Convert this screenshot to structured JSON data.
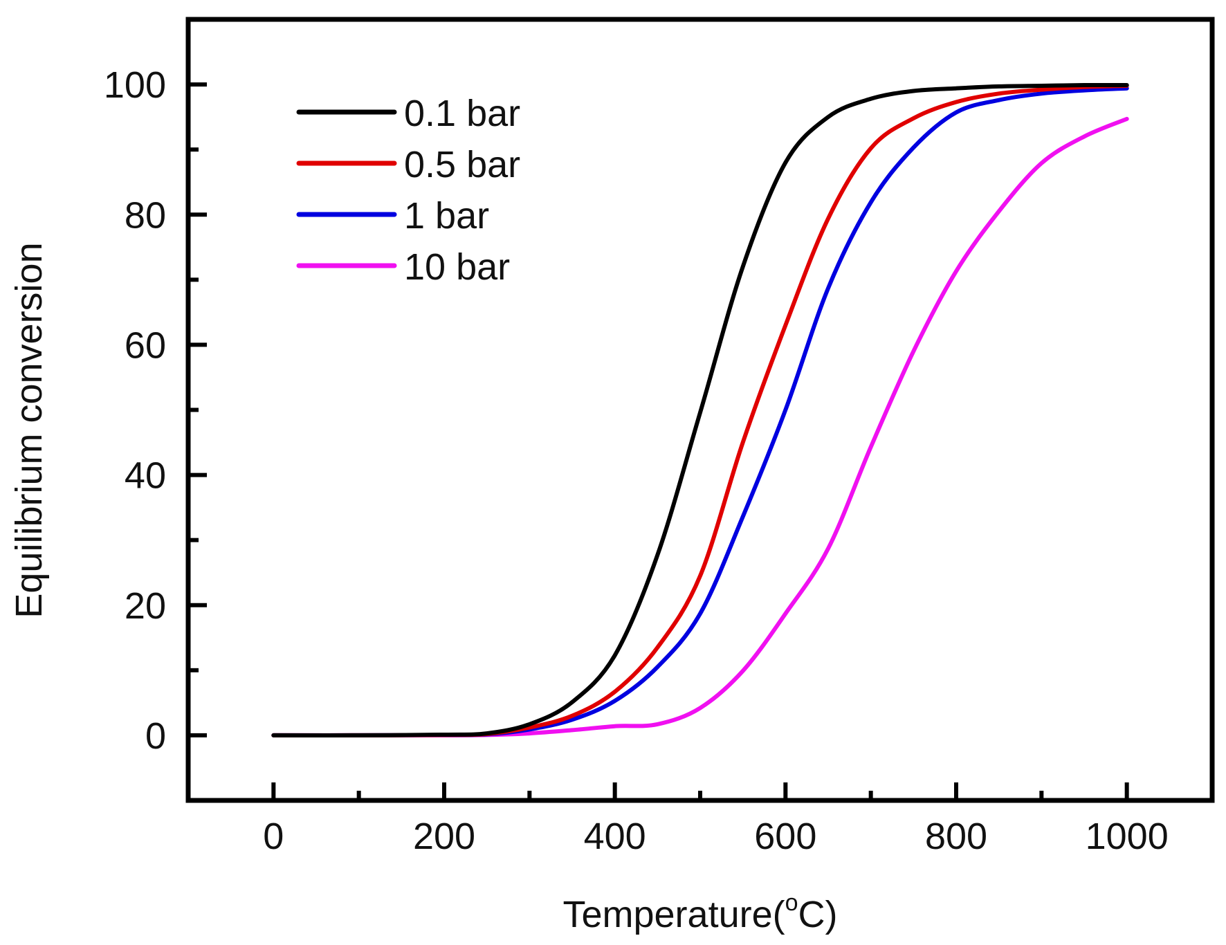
{
  "chart_data": {
    "type": "line",
    "title": "",
    "xlabel": "Temperature(",
    "xlabel_superscript": "o",
    "xlabel_suffix": "C)",
    "ylabel": "Equilibrium conversion",
    "xlim": [
      -100,
      1100
    ],
    "ylim": [
      -10,
      110
    ],
    "xticks": [
      0,
      200,
      400,
      600,
      800,
      1000
    ],
    "xtick_labels": [
      "0",
      "200",
      "400",
      "600",
      "800",
      "1000"
    ],
    "xminor": [
      100,
      300,
      500,
      700,
      900
    ],
    "yticks": [
      0,
      20,
      40,
      60,
      80,
      100
    ],
    "ytick_labels": [
      "0",
      "20",
      "40",
      "60",
      "80",
      "100"
    ],
    "yminor": [
      10,
      30,
      50,
      70,
      90
    ],
    "grid": false,
    "legend_position": "top-left",
    "x": [
      0,
      100,
      200,
      250,
      300,
      350,
      400,
      450,
      500,
      550,
      600,
      650,
      700,
      750,
      800,
      850,
      900,
      950,
      1000
    ],
    "series": [
      {
        "name": "0.1 bar",
        "color": "#000000",
        "values": [
          0,
          0,
          0.1,
          0.3,
          1.7,
          5.1,
          12.3,
          27.7,
          49.6,
          72,
          88,
          95,
          97.8,
          99,
          99.4,
          99.7,
          99.8,
          99.9,
          99.9
        ]
      },
      {
        "name": "0.5 bar",
        "color": "#e00000",
        "values": [
          0,
          0,
          0.05,
          0.2,
          1.2,
          3.0,
          6.7,
          13.5,
          24.5,
          45,
          63,
          79.4,
          90.2,
          94.8,
          97.3,
          98.6,
          99.2,
          99.6,
          99.8
        ]
      },
      {
        "name": "1 bar",
        "color": "#0000e0",
        "values": [
          0,
          0,
          0.05,
          0.15,
          0.9,
          2.4,
          5.3,
          10.5,
          18.7,
          33.6,
          50,
          68.7,
          81.9,
          90.3,
          95.7,
          97.6,
          98.6,
          99.1,
          99.4
        ]
      },
      {
        "name": "10 bar",
        "color": "#f010f0",
        "values": [
          0,
          0,
          0,
          0.05,
          0.3,
          0.8,
          1.4,
          1.7,
          4.2,
          9.9,
          18.7,
          28.7,
          44.3,
          59,
          71.3,
          80.5,
          87.9,
          92,
          94.7
        ]
      }
    ]
  }
}
